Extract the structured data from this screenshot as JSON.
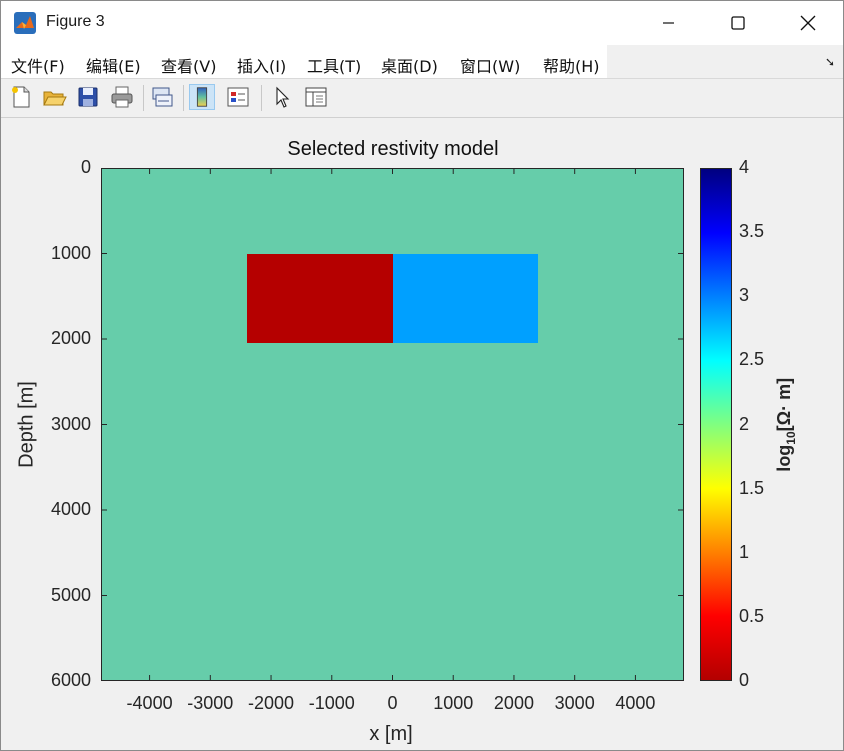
{
  "window": {
    "title": "Figure 3",
    "buttons": {
      "minimize": "—",
      "maximize": "☐",
      "close": "✕"
    }
  },
  "menu": {
    "items": [
      "文件(F)",
      "编辑(E)",
      "查看(V)",
      "插入(I)",
      "工具(T)",
      "桌面(D)",
      "窗口(W)",
      "帮助(H)"
    ],
    "dock_icon": "dock-arrow-icon",
    "dock_glyph": "➘"
  },
  "toolbar": {
    "icons": [
      "new-figure-icon",
      "open-file-icon",
      "save-icon",
      "print-icon",
      "link-plot-icon",
      "colorbar-icon",
      "legend-icon",
      "edit-plot-arrow-icon",
      "property-inspector-icon"
    ]
  },
  "plot": {
    "title": "Selected restivity model",
    "xlabel": "x [m]",
    "ylabel": "Depth [m]",
    "colorbar_label": "log",
    "colorbar_label_sub": "10",
    "colorbar_label_suffix": "[Ω· m]"
  },
  "chart_data": {
    "type": "heatmap",
    "title": "Selected restivity model",
    "xlabel": "x [m]",
    "ylabel": "Depth [m]",
    "xlim": [
      -4800,
      4800
    ],
    "ylim": [
      0,
      6000
    ],
    "y_reversed": true,
    "xticks": [
      -4000,
      -3000,
      -2000,
      -1000,
      0,
      1000,
      2000,
      3000,
      4000
    ],
    "yticks": [
      0,
      1000,
      2000,
      3000,
      4000,
      5000,
      6000
    ],
    "background_value": 2,
    "background_color": "#66cdaa",
    "blocks": [
      {
        "x": [
          -2400,
          0
        ],
        "depth": [
          1000,
          2050
        ],
        "value": 0,
        "color": "#b50000"
      },
      {
        "x": [
          0,
          2400
        ],
        "depth": [
          1000,
          2050
        ],
        "value": 3,
        "color": "#00a0ff"
      }
    ],
    "colorbar": {
      "label": "log10[Ω· m]",
      "lim": [
        0,
        4
      ],
      "ticks": [
        0,
        0.5,
        1,
        1.5,
        2,
        2.5,
        3,
        3.5,
        4
      ],
      "tick_labels": [
        "0",
        "0.5",
        "1",
        "1.5",
        "2",
        "2.5",
        "3",
        "3.5",
        "4"
      ],
      "colormap": "jet"
    }
  }
}
